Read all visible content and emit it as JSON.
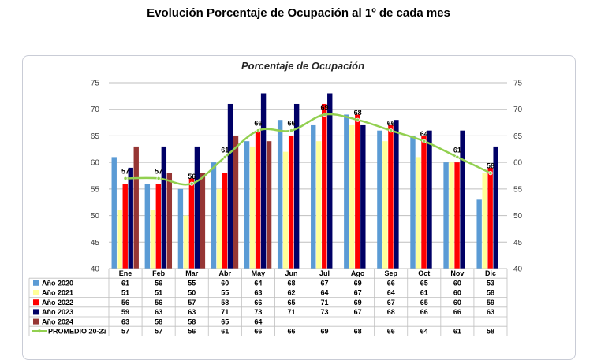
{
  "page": {
    "title": "Evolución Porcentaje de Ocupación al 1º de cada mes"
  },
  "colors": {
    "series": [
      "#5b9bd5",
      "#ffff99",
      "#ff0000",
      "#000066",
      "#963634",
      "#92d050"
    ],
    "grid": "#bfbfbf",
    "frame": "#c9ccd6"
  },
  "chart_data": {
    "type": "bar",
    "title": "Porcentaje de Ocupación",
    "categories": [
      "Ene",
      "Feb",
      "Mar",
      "Abr",
      "May",
      "Jun",
      "Jul",
      "Ago",
      "Sep",
      "Oct",
      "Nov",
      "Dic"
    ],
    "ylim": [
      40,
      75
    ],
    "yticks": [
      40,
      45,
      50,
      55,
      60,
      65,
      70,
      75
    ],
    "secondary_axis": true,
    "grid": true,
    "legend": "data-table-left",
    "series": [
      {
        "name": "Año 2020",
        "type": "bar",
        "values": [
          61,
          56,
          55,
          60,
          64,
          68,
          67,
          69,
          66,
          65,
          60,
          53
        ]
      },
      {
        "name": "Año 2021",
        "type": "bar",
        "values": [
          51,
          51,
          50,
          55,
          63,
          62,
          64,
          67,
          64,
          61,
          60,
          58
        ]
      },
      {
        "name": "Año 2022",
        "type": "bar",
        "values": [
          56,
          56,
          57,
          58,
          66,
          65,
          71,
          69,
          67,
          65,
          60,
          59
        ]
      },
      {
        "name": "Año 2023",
        "type": "bar",
        "values": [
          59,
          63,
          63,
          71,
          73,
          71,
          73,
          67,
          68,
          66,
          66,
          63
        ]
      },
      {
        "name": "Año 2024",
        "type": "bar",
        "values": [
          63,
          58,
          58,
          65,
          64,
          null,
          null,
          null,
          null,
          null,
          null,
          null
        ]
      },
      {
        "name": "PROMEDIO 20-23",
        "type": "line",
        "values": [
          57,
          57,
          56,
          61,
          66,
          66,
          69,
          68,
          66,
          64,
          61,
          58
        ]
      }
    ]
  }
}
